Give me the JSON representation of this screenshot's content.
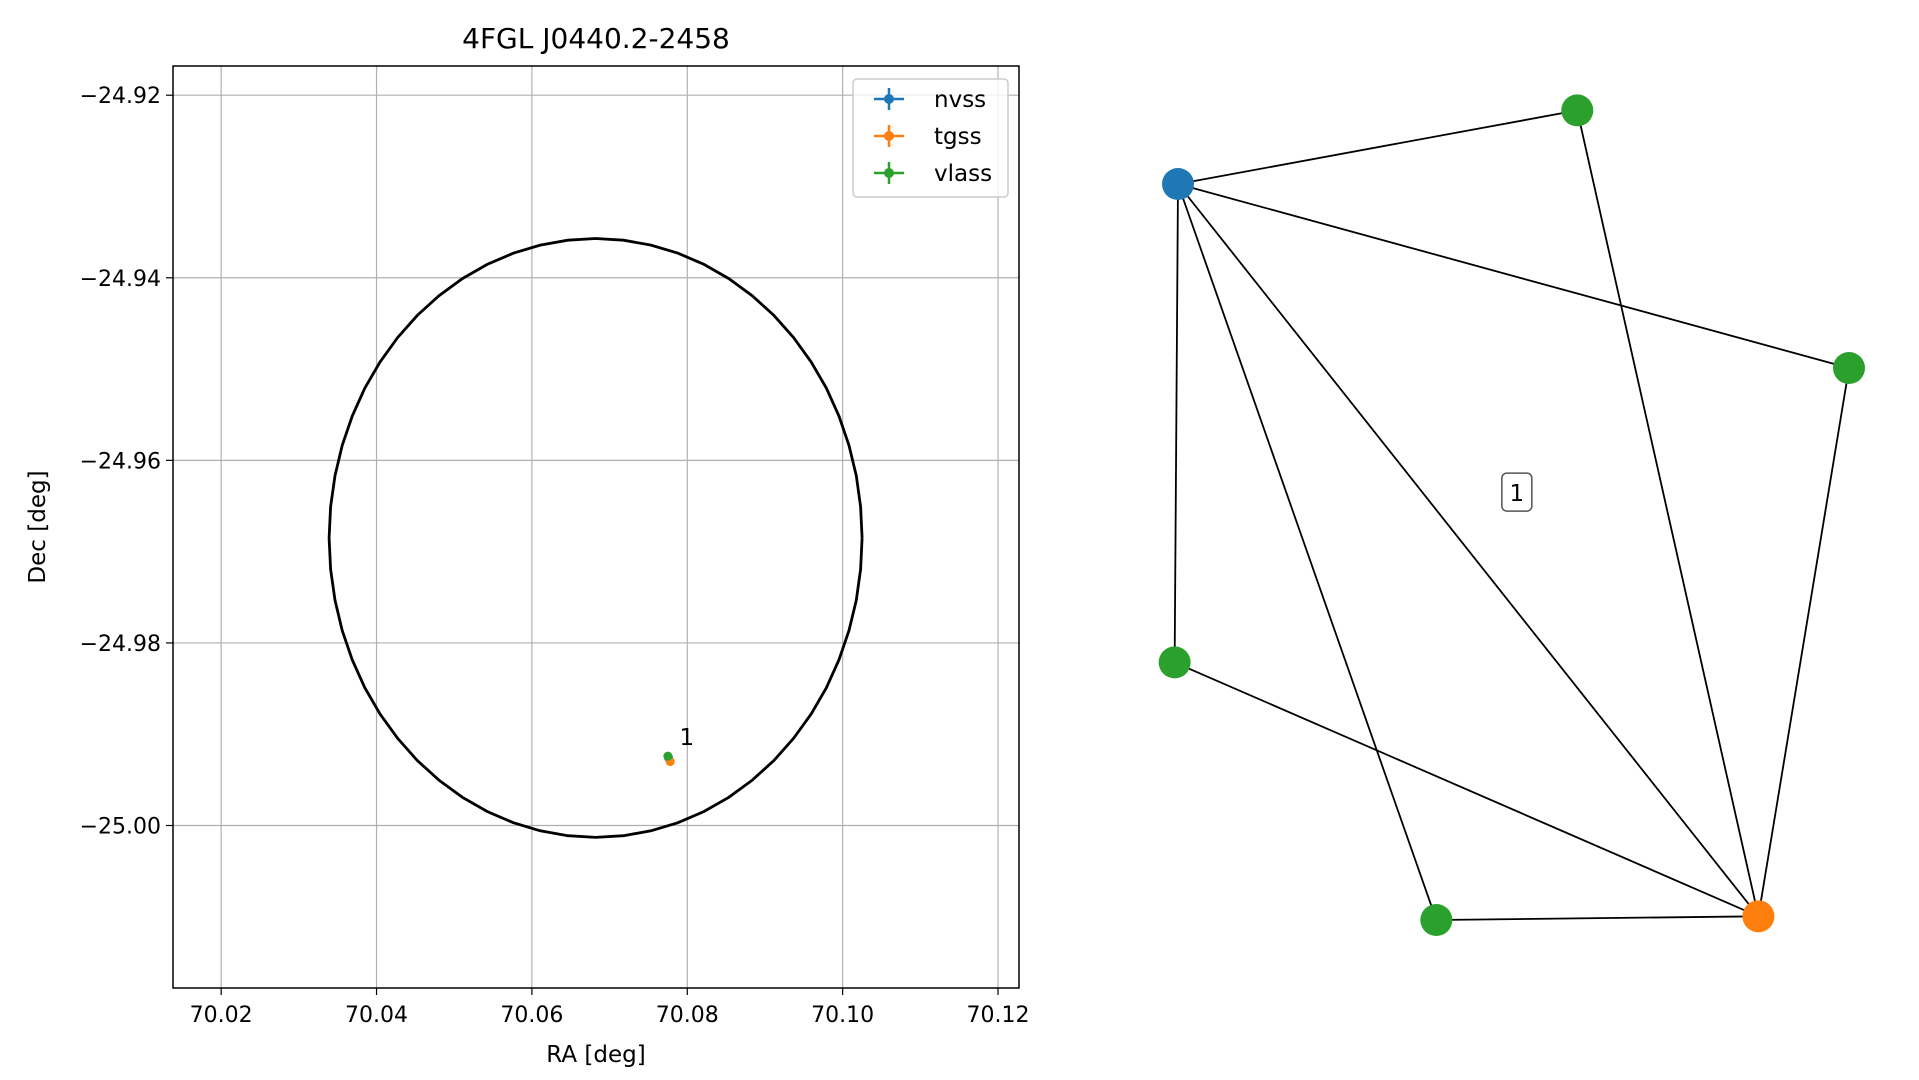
{
  "chart_data": [
    {
      "type": "scatter",
      "title": "4FGL J0440.2-2458",
      "xlabel": "RA [deg]",
      "ylabel": "Dec [deg]",
      "xlim": [
        70.0138,
        70.1227
      ],
      "ylim": [
        -25.0178,
        -24.9168
      ],
      "xticks": [
        70.02,
        70.04,
        70.06,
        70.08,
        70.1,
        70.12
      ],
      "xtick_labels": [
        "70.02",
        "70.04",
        "70.06",
        "70.08",
        "70.10",
        "70.12"
      ],
      "yticks": [
        -24.92,
        -24.94,
        -24.96,
        -24.98,
        -25.0
      ],
      "ytick_labels": [
        "−24.92",
        "−24.94",
        "−24.96",
        "−24.98",
        "−25.00"
      ],
      "grid": true,
      "legend_position": "top-right",
      "series": [
        {
          "name": "nvss",
          "color": "#1f77b4",
          "points": [
            {
              "x": 70.0776,
              "y": -24.9926
            }
          ]
        },
        {
          "name": "tgss",
          "color": "#ff7f0e",
          "points": [
            {
              "x": 70.0778,
              "y": -24.993
            }
          ]
        },
        {
          "name": "vlass",
          "color": "#2ca02c",
          "points": [
            {
              "x": 70.0775,
              "y": -24.9924
            }
          ]
        }
      ],
      "ellipse": {
        "center_x": 70.0682,
        "center_y": -24.9685,
        "semi_axis_x": 0.0343,
        "semi_axis_y": 0.0328,
        "color": "#000000"
      },
      "annotations": [
        {
          "text": "1",
          "x": 70.079,
          "y": -24.9912
        }
      ]
    },
    {
      "type": "graph",
      "nodes": [
        {
          "id": "n0",
          "color": "#1f77b4",
          "x": 0.0,
          "y": 0.0
        },
        {
          "id": "g1",
          "color": "#2ca02c",
          "x": 0.595,
          "y": -0.1
        },
        {
          "id": "g2",
          "color": "#2ca02c",
          "x": 1.0,
          "y": 0.25
        },
        {
          "id": "g3",
          "color": "#2ca02c",
          "x": -0.005,
          "y": 0.65
        },
        {
          "id": "g4",
          "color": "#2ca02c",
          "x": 0.385,
          "y": 1.0
        },
        {
          "id": "o5",
          "color": "#ff7f0e",
          "x": 0.865,
          "y": 0.995
        }
      ],
      "edges": [
        [
          "n0",
          "g1"
        ],
        [
          "n0",
          "g2"
        ],
        [
          "n0",
          "g3"
        ],
        [
          "n0",
          "g4"
        ],
        [
          "n0",
          "o5"
        ],
        [
          "g1",
          "o5"
        ],
        [
          "g2",
          "o5"
        ],
        [
          "g3",
          "o5"
        ],
        [
          "g4",
          "o5"
        ]
      ],
      "label": {
        "text": "1",
        "x": 0.505,
        "y": 0.42
      }
    }
  ]
}
